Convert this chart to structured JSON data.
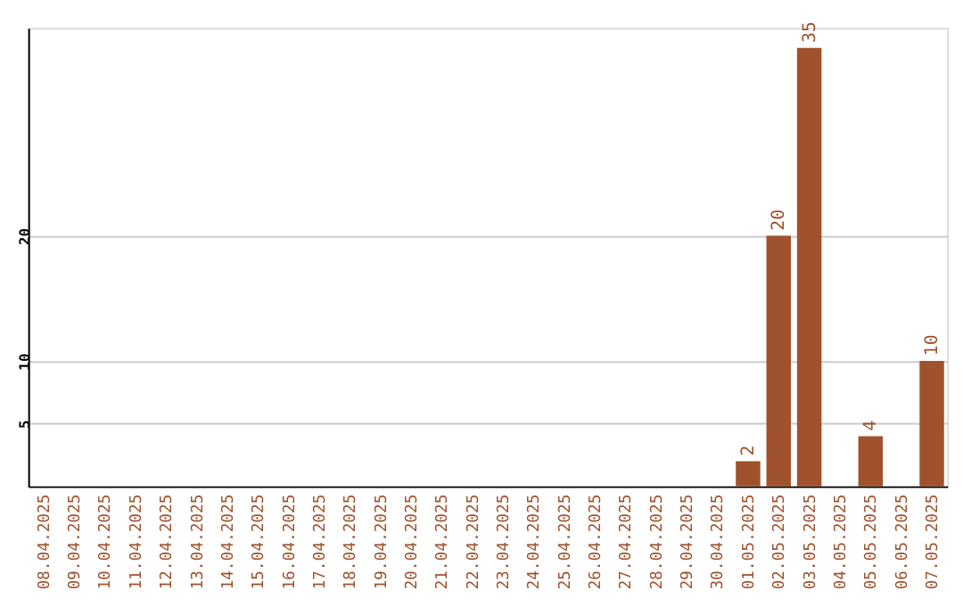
{
  "chart_data": {
    "type": "bar",
    "categories": [
      "08.04.2025",
      "09.04.2025",
      "10.04.2025",
      "11.04.2025",
      "12.04.2025",
      "13.04.2025",
      "14.04.2025",
      "15.04.2025",
      "16.04.2025",
      "17.04.2025",
      "18.04.2025",
      "19.04.2025",
      "20.04.2025",
      "21.04.2025",
      "22.04.2025",
      "23.04.2025",
      "24.04.2025",
      "25.04.2025",
      "26.04.2025",
      "27.04.2025",
      "28.04.2025",
      "29.04.2025",
      "30.04.2025",
      "01.05.2025",
      "02.05.2025",
      "03.05.2025",
      "04.05.2025",
      "05.05.2025",
      "06.05.2025",
      "07.05.2025"
    ],
    "values": [
      0,
      0,
      0,
      0,
      0,
      0,
      0,
      0,
      0,
      0,
      0,
      0,
      0,
      0,
      0,
      0,
      0,
      0,
      0,
      0,
      0,
      0,
      0,
      2,
      20,
      35,
      0,
      4,
      0,
      10
    ],
    "value_labels": [
      null,
      null,
      null,
      null,
      null,
      null,
      null,
      null,
      null,
      null,
      null,
      null,
      null,
      null,
      null,
      null,
      null,
      null,
      null,
      null,
      null,
      null,
      null,
      "2",
      "20",
      "35",
      null,
      "4",
      null,
      "10"
    ],
    "color": "#a0522d",
    "ylim": [
      0,
      36.6
    ],
    "yticks": [
      5,
      10,
      20
    ],
    "grid": "y"
  }
}
